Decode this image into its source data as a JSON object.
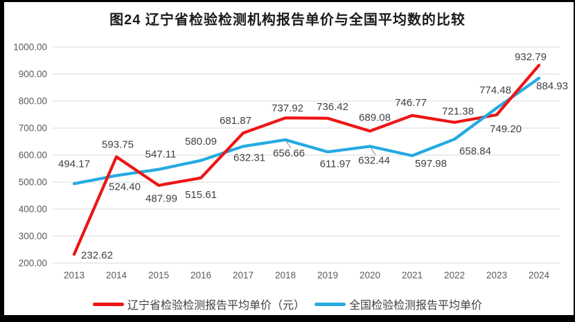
{
  "page": {
    "title": "图24 辽宁省检验检测机构报告单价与全国平均数的比较"
  },
  "chart_data": {
    "type": "line",
    "title": "图24 辽宁省检验检测机构报告单价与全国平均数的比较",
    "xlabel": "",
    "ylabel": "",
    "categories": [
      "2013",
      "2014",
      "2015",
      "2016",
      "2017",
      "2018",
      "2019",
      "2020",
      "2021",
      "2022",
      "2023",
      "2024"
    ],
    "y_ticks": [
      "200.00",
      "300.00",
      "400.00",
      "500.00",
      "600.00",
      "700.00",
      "800.00",
      "900.00",
      "1000.00"
    ],
    "ylim": [
      200,
      1000
    ],
    "grid": true,
    "legend_position": "bottom",
    "series": [
      {
        "name": "辽宁省检验检测报告平均单价（元）",
        "color": "#ed1515",
        "values": [
          232.62,
          593.75,
          487.99,
          515.61,
          681.87,
          737.92,
          736.42,
          689.08,
          746.77,
          721.38,
          749.2,
          932.79
        ],
        "labels": [
          "232.62",
          "593.75",
          "487.99",
          "515.61",
          "681.87",
          "737.92",
          "736.42",
          "689.08",
          "746.77",
          "721.38",
          "749.20",
          "932.79"
        ]
      },
      {
        "name": "全国检验检测报告平均单价",
        "color": "#25aae1",
        "values": [
          494.17,
          524.4,
          547.11,
          580.09,
          632.31,
          656.66,
          611.97,
          632.44,
          597.98,
          658.84,
          774.48,
          884.93
        ],
        "labels": [
          "494.17",
          "524.40",
          "547.11",
          "580.09",
          "632.31",
          "656.66",
          "611.97",
          "632.44",
          "597.98",
          "658.84",
          "774.48",
          "884.93"
        ]
      }
    ]
  },
  "colors": {
    "gridline": "#d9d9d9",
    "axis_text": "#595959",
    "data_label_text": "#3f3f3f",
    "leader_line": "#9e9e9e",
    "page_border": "#000000"
  }
}
